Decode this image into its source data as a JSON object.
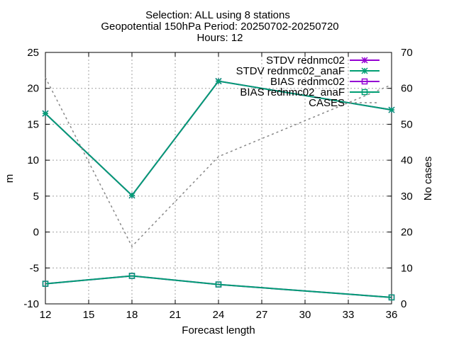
{
  "title_lines": [
    "Selection: ALL using     8 stations",
    "Geopotential 150hPa   Period: 20250702-20250720",
    "Hours: 12"
  ],
  "chart_data": {
    "type": "line",
    "xlabel": "Forecast length",
    "ylabel": "m",
    "y2label": "No cases",
    "x": [
      12,
      18,
      24,
      36
    ],
    "xlim": [
      12,
      36
    ],
    "ylim": [
      -10,
      25
    ],
    "y2lim": [
      0,
      70
    ],
    "xticks": [
      "12",
      "15",
      "18",
      "21",
      "24",
      "27",
      "30",
      "33",
      "36"
    ],
    "yticks": [
      "-10",
      "-5",
      "0",
      "5",
      "10",
      "15",
      "20",
      "25"
    ],
    "y2ticks": [
      "0",
      "10",
      "20",
      "30",
      "40",
      "50",
      "60",
      "70"
    ],
    "grid": true,
    "legend_position": "top-right",
    "series": [
      {
        "name": "STDV rednmc02",
        "axis": "y",
        "marker": "star",
        "color": "#9400d3",
        "values": [
          16.5,
          5.1,
          21.0,
          17.0
        ]
      },
      {
        "name": "STDV rednmc02_anaF",
        "axis": "y",
        "marker": "star",
        "color": "#009e73",
        "values": [
          16.5,
          5.1,
          21.0,
          17.0
        ]
      },
      {
        "name": "BIAS rednmc02",
        "axis": "y",
        "marker": "square",
        "color": "#9400d3",
        "values": [
          -7.2,
          -6.1,
          -7.3,
          -9.1
        ]
      },
      {
        "name": "BIAS rednmc02_anaF",
        "axis": "y",
        "marker": "square",
        "color": "#009e73",
        "values": [
          -7.2,
          -6.1,
          -7.3,
          -9.1
        ]
      },
      {
        "name": "CASES",
        "axis": "y2",
        "marker": "none",
        "color": "#888888",
        "dashed": true,
        "values": [
          63,
          16,
          41,
          61
        ]
      }
    ]
  }
}
